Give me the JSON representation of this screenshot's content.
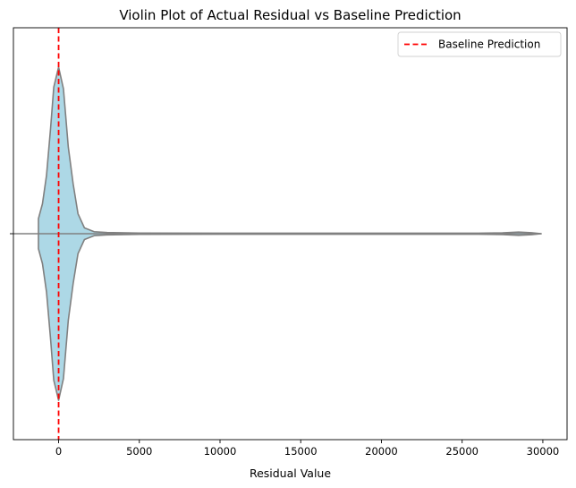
{
  "chart_data": {
    "type": "violin",
    "title": "Violin Plot of Actual Residual vs Baseline Prediction",
    "xlabel": "Residual Value",
    "ylabel": "",
    "xlim": [
      -2800,
      31500
    ],
    "xticks": [
      0,
      5000,
      10000,
      15000,
      20000,
      25000,
      30000
    ],
    "xtick_labels": [
      "0",
      "5000",
      "10000",
      "15000",
      "20000",
      "25000",
      "30000"
    ],
    "grid": false,
    "legend_position": "top-right",
    "violin": {
      "fill_color": "#add8e6",
      "edge_color": "#808080",
      "half_width_fraction": [
        [
          -1250,
          0.09
        ],
        [
          -1000,
          0.18
        ],
        [
          -750,
          0.35
        ],
        [
          -500,
          0.63
        ],
        [
          -300,
          0.88
        ],
        [
          0,
          1.0
        ],
        [
          300,
          0.87
        ],
        [
          600,
          0.52
        ],
        [
          900,
          0.3
        ],
        [
          1200,
          0.12
        ],
        [
          1600,
          0.035
        ],
        [
          2200,
          0.012
        ],
        [
          3000,
          0.007
        ],
        [
          5000,
          0.004
        ],
        [
          10000,
          0.003
        ],
        [
          20000,
          0.003
        ],
        [
          26000,
          0.003
        ],
        [
          27500,
          0.005
        ],
        [
          28500,
          0.01
        ],
        [
          29300,
          0.006
        ],
        [
          29900,
          0.0
        ]
      ]
    },
    "reference_line": {
      "name": "Baseline Prediction",
      "x": 0,
      "color": "#ff0000",
      "style": "dashed"
    }
  }
}
